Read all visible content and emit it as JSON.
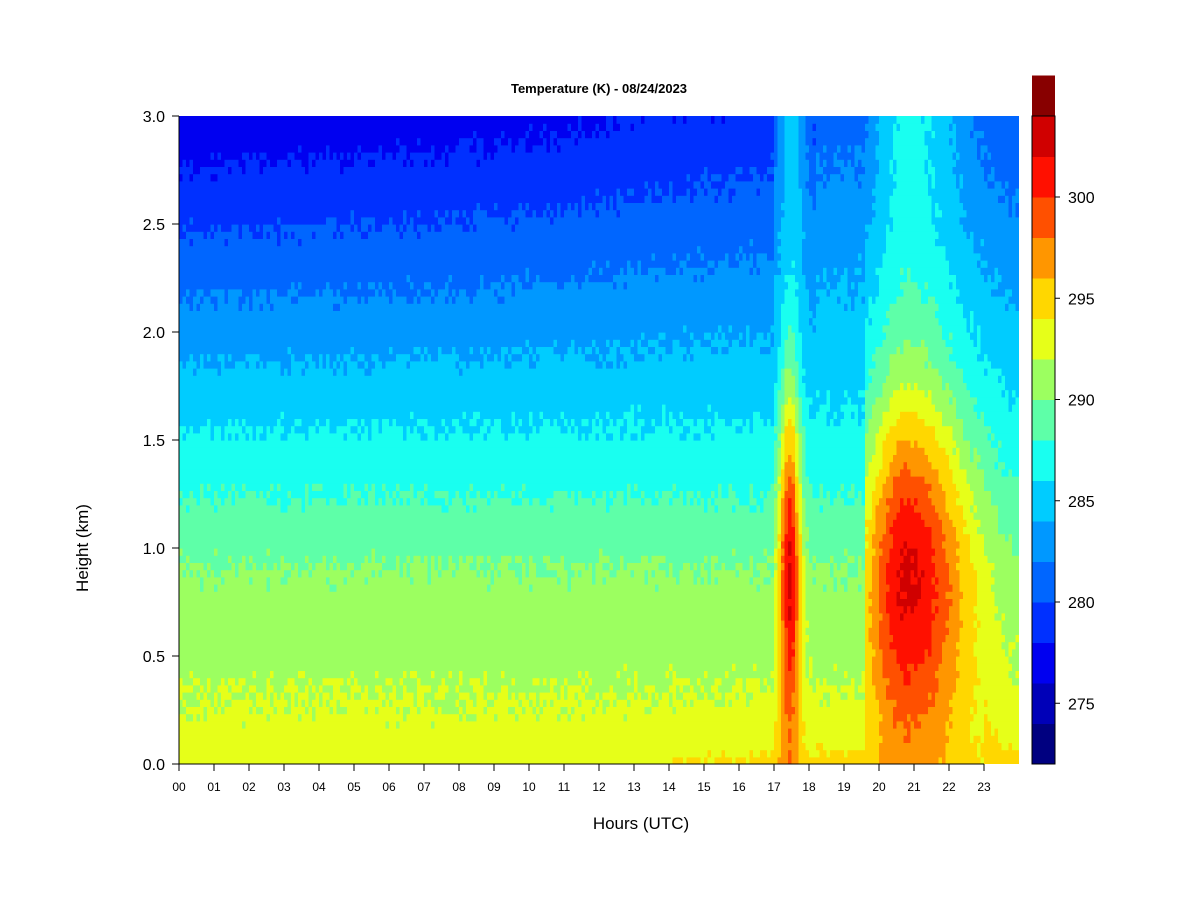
{
  "chart_data": {
    "type": "heatmap",
    "title": "Temperature (K) - 08/24/2023",
    "xlabel": "Hours (UTC)",
    "ylabel": "Height (km)",
    "xlim": [
      0,
      24
    ],
    "ylim": [
      0.0,
      3.0
    ],
    "x_ticks": [
      "00",
      "01",
      "02",
      "03",
      "04",
      "05",
      "06",
      "07",
      "08",
      "09",
      "10",
      "11",
      "12",
      "13",
      "14",
      "15",
      "16",
      "17",
      "18",
      "19",
      "20",
      "21",
      "22",
      "23"
    ],
    "y_ticks": [
      "0.0",
      "0.5",
      "1.0",
      "1.5",
      "2.0",
      "2.5",
      "3.0"
    ],
    "colorbar": {
      "range": [
        272,
        304
      ],
      "step": 2,
      "tick_labels": [
        "275",
        "280",
        "285",
        "290",
        "295",
        "300"
      ],
      "tick_values": [
        275,
        280,
        285,
        290,
        295,
        300
      ],
      "colors": [
        "#000080",
        "#0000b8",
        "#0000f0",
        "#0030ff",
        "#0066ff",
        "#0098ff",
        "#00ccff",
        "#19fff0",
        "#5effa8",
        "#9cff60",
        "#e6ff19",
        "#ffd700",
        "#ff9600",
        "#ff5000",
        "#ff1000",
        "#d00000",
        "#880000"
      ]
    },
    "grid": false
  }
}
